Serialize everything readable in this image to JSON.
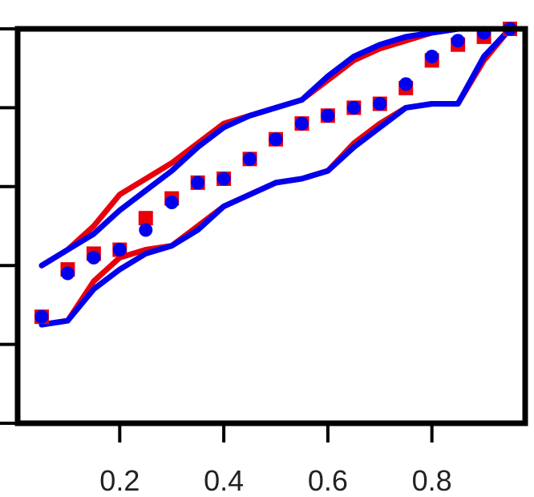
{
  "chart_data": {
    "type": "scatter",
    "title": "",
    "xlabel": "",
    "ylabel": "",
    "xlim": [
      0.05,
      0.95
    ],
    "ylim": [
      0,
      1
    ],
    "x_ticks": [
      0.2,
      0.4,
      0.6,
      0.8
    ],
    "x_tick_labels": [
      "0.2",
      "0.4",
      "0.6",
      "0.8"
    ],
    "y_ticks": [
      0,
      0.2,
      0.4,
      0.6,
      0.8,
      1.0
    ],
    "y_tick_labels_visible": false,
    "grid": false,
    "legend": "none",
    "x": [
      0.05,
      0.1,
      0.15,
      0.2,
      0.25,
      0.3,
      0.35,
      0.4,
      0.45,
      0.5,
      0.55,
      0.6,
      0.65,
      0.7,
      0.75,
      0.8,
      0.85,
      0.9,
      0.95
    ],
    "series": [
      {
        "color": "#e8000b",
        "marker": "square",
        "points": [
          0.27,
          0.39,
          0.43,
          0.44,
          0.52,
          0.57,
          0.61,
          0.62,
          0.67,
          0.72,
          0.76,
          0.78,
          0.8,
          0.81,
          0.85,
          0.92,
          0.96,
          0.98,
          1.0
        ],
        "band_upper": [
          0.4,
          0.44,
          0.5,
          0.58,
          0.62,
          0.66,
          0.71,
          0.76,
          0.78,
          0.8,
          0.82,
          0.87,
          0.92,
          0.95,
          0.97,
          0.99,
          1.0,
          1.0,
          1.0
        ],
        "band_lower": [
          0.25,
          0.26,
          0.36,
          0.42,
          0.44,
          0.45,
          0.5,
          0.55,
          0.58,
          0.61,
          0.62,
          0.64,
          0.71,
          0.76,
          0.8,
          0.81,
          0.81,
          0.92,
          1.0
        ]
      },
      {
        "color": "#0000ee",
        "marker": "circle",
        "points": [
          0.27,
          0.38,
          0.42,
          0.44,
          0.49,
          0.56,
          0.61,
          0.62,
          0.67,
          0.72,
          0.76,
          0.78,
          0.8,
          0.81,
          0.86,
          0.93,
          0.97,
          0.99,
          1.0
        ],
        "band_upper": [
          0.4,
          0.44,
          0.48,
          0.54,
          0.59,
          0.64,
          0.7,
          0.75,
          0.78,
          0.8,
          0.82,
          0.88,
          0.93,
          0.96,
          0.98,
          0.99,
          1.0,
          1.0,
          1.0
        ],
        "band_lower": [
          0.25,
          0.26,
          0.34,
          0.39,
          0.43,
          0.45,
          0.49,
          0.55,
          0.58,
          0.61,
          0.62,
          0.64,
          0.7,
          0.75,
          0.8,
          0.81,
          0.81,
          0.93,
          1.0
        ]
      }
    ]
  }
}
